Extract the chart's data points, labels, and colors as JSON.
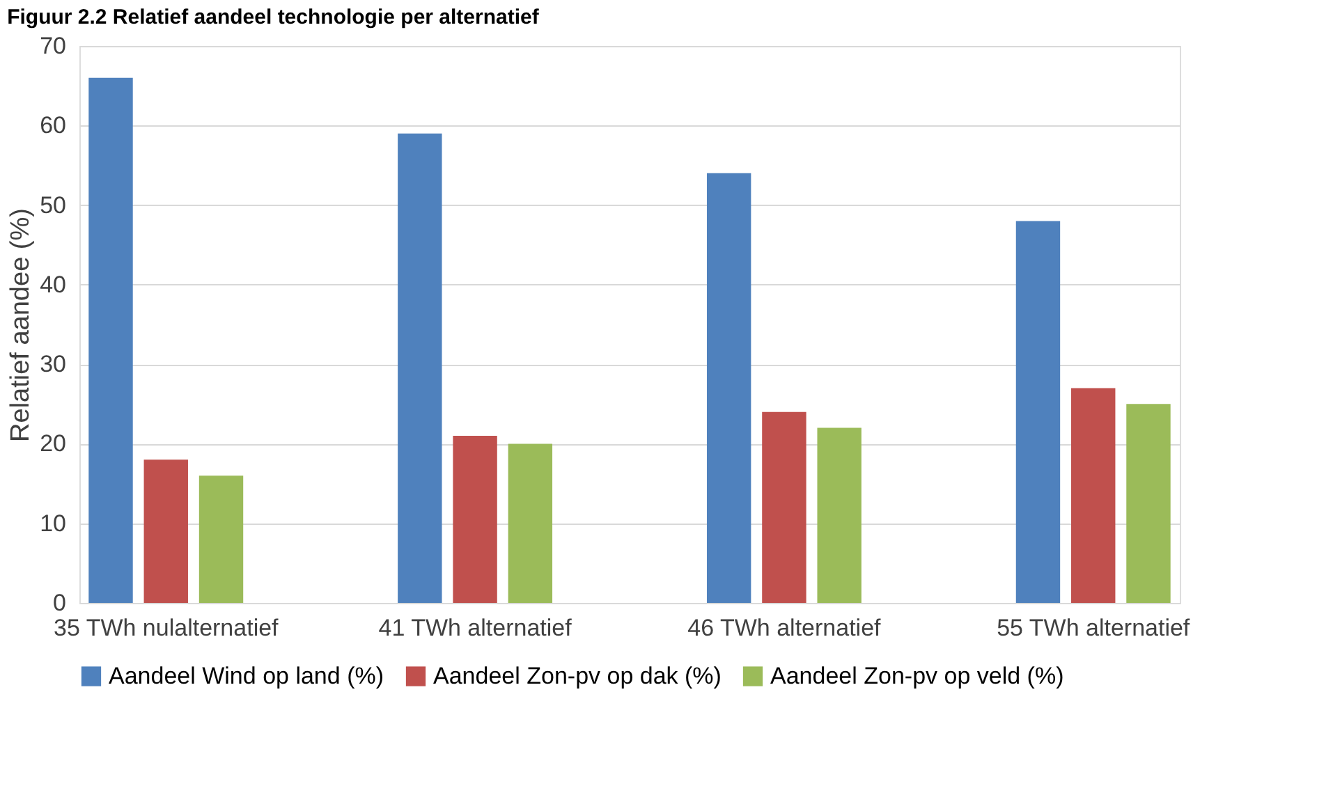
{
  "chart_data": {
    "type": "bar",
    "title": "Figuur 2.2 Relatief aandeel technologie per alternatief",
    "ylabel": "Relatief aandee (%)",
    "categories": [
      "35 TWh nulalternatief",
      "41 TWh alternatief",
      "46 TWh alternatief",
      "55 TWh alternatief"
    ],
    "series": [
      {
        "name": "Aandeel Wind op land (%)",
        "color": "#4f81bd",
        "values": [
          66,
          59,
          54,
          48
        ]
      },
      {
        "name": "Aandeel Zon-pv op dak (%)",
        "color": "#c0504d",
        "values": [
          18,
          21,
          24,
          27
        ]
      },
      {
        "name": "Aandeel Zon-pv op veld (%)",
        "color": "#9bbb59",
        "values": [
          16,
          20,
          22,
          25
        ]
      }
    ],
    "ylim": [
      0,
      70
    ],
    "yticks": [
      0,
      10,
      20,
      30,
      40,
      50,
      60,
      70
    ],
    "grid": "y",
    "legend": "bottom"
  }
}
